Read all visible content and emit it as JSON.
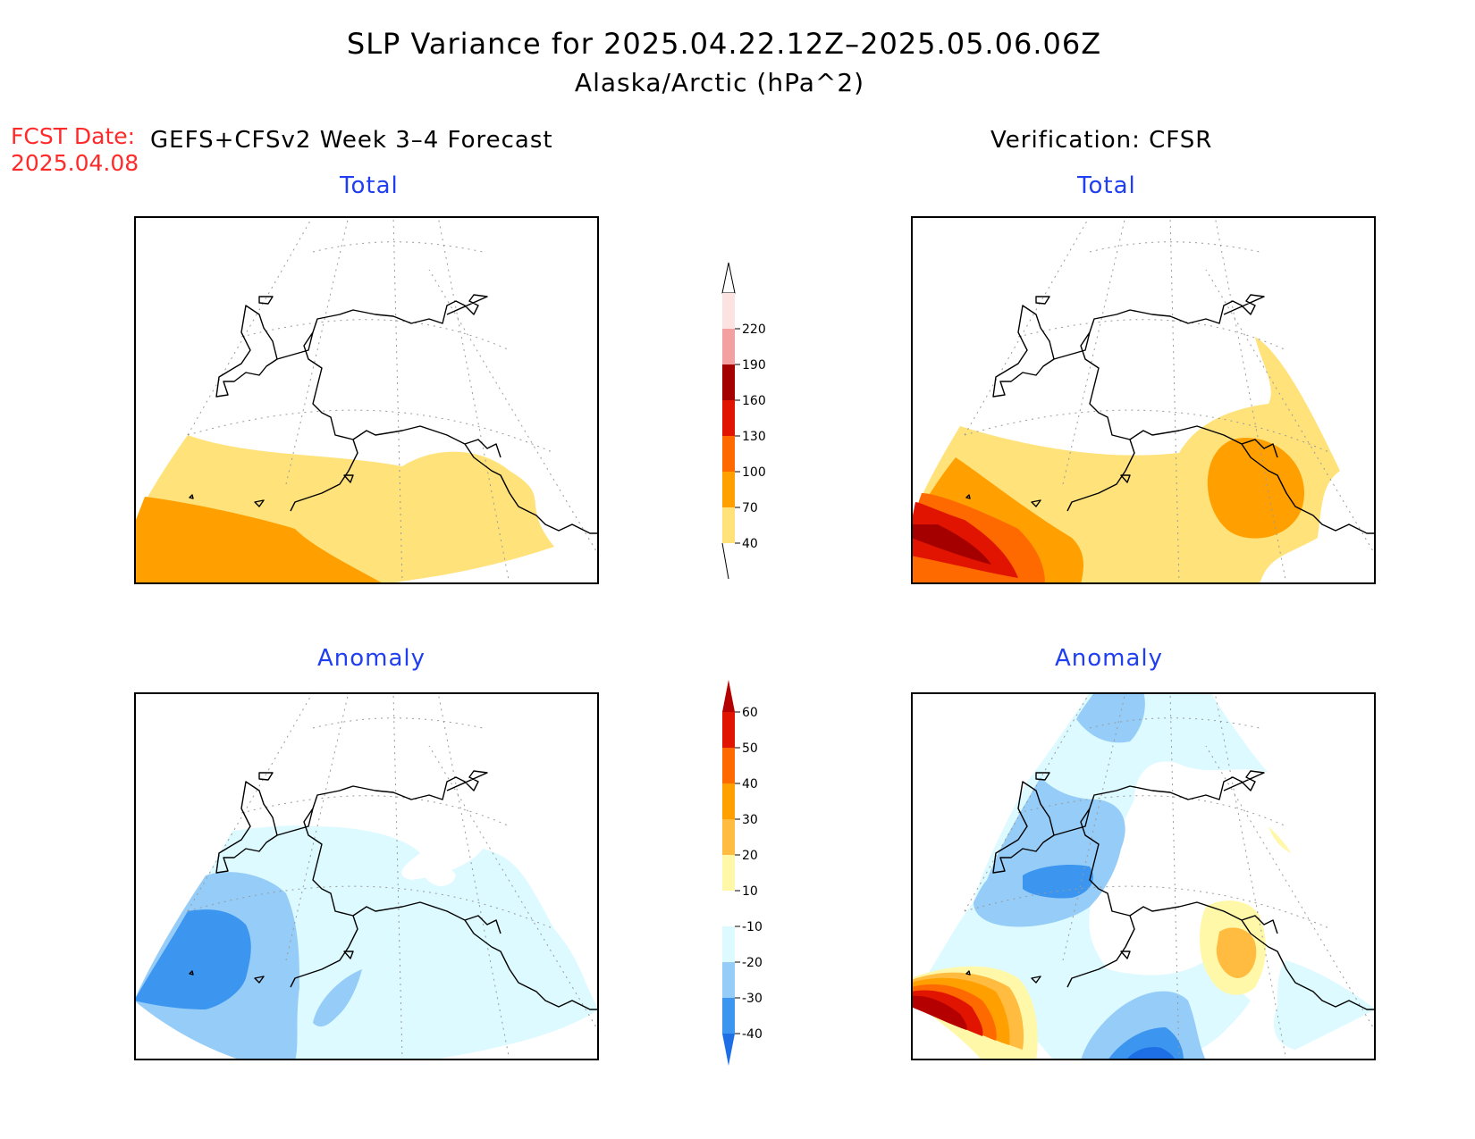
{
  "title": "SLP Variance for 2025.04.22.12Z–2025.05.06.06Z",
  "subtitle": "Alaska/Arctic (hPa^2)",
  "fcst_date_label": "FCST Date:",
  "fcst_date_value": "2025.04.08",
  "left_column_title": "GEFS+CFSv2 Week 3–4 Forecast",
  "right_column_title": "Verification: CFSR",
  "panels": {
    "forecast_total": "Total",
    "verification_total": "Total",
    "forecast_anomaly": "Anomaly",
    "verification_anomaly": "Anomaly"
  },
  "total_colorbar": {
    "labels": [
      "220",
      "190",
      "160",
      "130",
      "100",
      "70",
      "40"
    ],
    "colors": [
      "#fde2e2",
      "#f2a0a0",
      "#a50000",
      "#e01400",
      "#ff6a00",
      "#ffa000",
      "#ffe27a"
    ]
  },
  "anomaly_colorbar": {
    "labels": [
      "60",
      "50",
      "40",
      "30",
      "20",
      "10",
      "-10",
      "-20",
      "-30",
      "-40"
    ],
    "colors": [
      "#b40000",
      "#e01400",
      "#ff6a00",
      "#ffa000",
      "#ffbc40",
      "#fff8a8",
      "#ffffff",
      "#dcfaff",
      "#96ccf8",
      "#3c96f0",
      "#1e6ee6"
    ]
  },
  "colors": {
    "title_red": "#ff2a2a",
    "panel_title_blue": "#1f3ff0"
  }
}
